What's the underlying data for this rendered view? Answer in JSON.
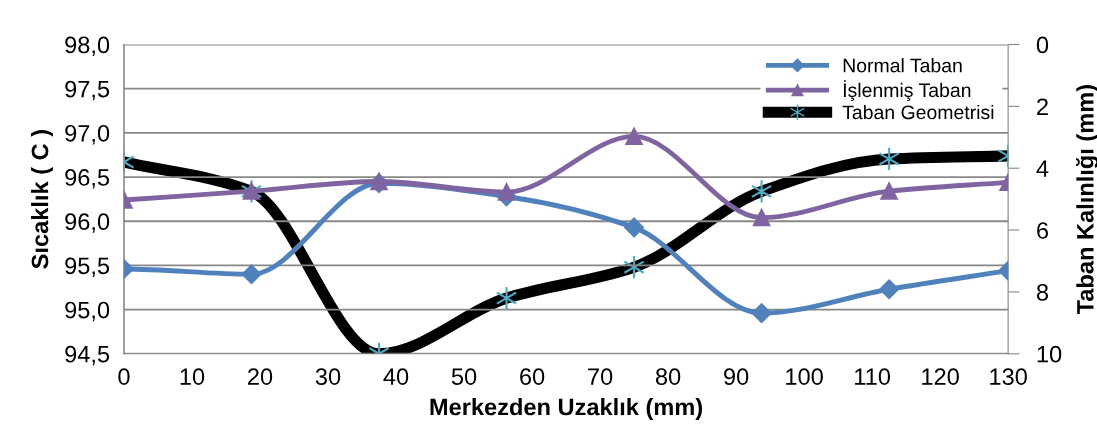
{
  "chart_data": {
    "type": "line",
    "xlabel": "Merkezden Uzaklık (mm)",
    "ylabel": "Sıcaklık ( C )",
    "y2label": "Taban Kalınlığı (mm)",
    "x": [
      0,
      18.75,
      37.5,
      56.25,
      75,
      93.75,
      112.5,
      130
    ],
    "series": [
      {
        "name": "Normal Taban",
        "color": "#4f81bd",
        "marker": "diamond",
        "values": [
          95.46,
          95.4,
          96.43,
          96.28,
          95.93,
          94.96,
          95.23,
          95.44
        ]
      },
      {
        "name": "İşlenmiş Taban",
        "color": "#8064a2",
        "marker": "triangle",
        "values": [
          96.24,
          96.34,
          96.45,
          96.33,
          96.96,
          96.04,
          96.34,
          96.44
        ]
      },
      {
        "name": "Taban Geometrisi",
        "color": "#000000",
        "marker": "cross",
        "axis": "y2",
        "values": [
          3.8,
          4.75,
          10.0,
          8.2,
          7.2,
          4.75,
          3.7,
          3.6
        ]
      }
    ],
    "xlim": [
      0,
      130
    ],
    "xticks": [
      0,
      10,
      20,
      30,
      40,
      50,
      60,
      70,
      80,
      90,
      100,
      110,
      120,
      130
    ],
    "ylim": [
      94.5,
      98.0
    ],
    "yticks": [
      {
        "value": 94.5,
        "label": "94,5"
      },
      {
        "value": 95.0,
        "label": "95,0"
      },
      {
        "value": 95.5,
        "label": "95,5"
      },
      {
        "value": 96.0,
        "label": "96,0"
      },
      {
        "value": 96.5,
        "label": "96,5"
      },
      {
        "value": 97.0,
        "label": "97,0"
      },
      {
        "value": 97.5,
        "label": "97,5"
      },
      {
        "value": 98.0,
        "label": "98,0"
      }
    ],
    "y2lim": [
      10,
      0
    ],
    "y2ticks": [
      0,
      2,
      4,
      6,
      8,
      10
    ],
    "grid": "y",
    "legend": "top right",
    "line_style": "solid"
  }
}
